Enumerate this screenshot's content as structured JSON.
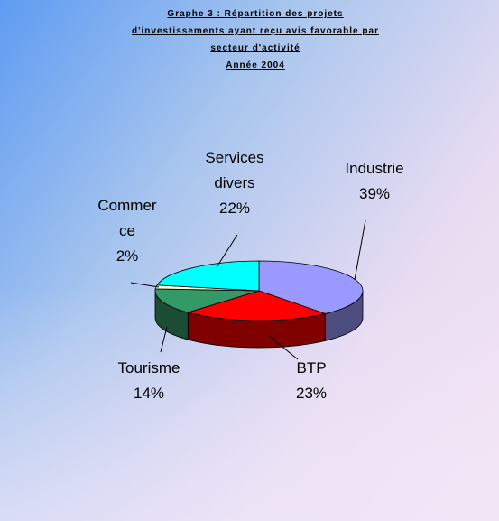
{
  "chart_data": {
    "type": "pie",
    "title": [
      "Graphe 3 : Répartition des projets",
      "d'investissements ayant reçu avis favorable par",
      "secteur d'activité"
    ],
    "subtitle": "Année 2004",
    "categories": [
      "Industrie",
      "BTP",
      "Tourisme",
      "Commerce",
      "Services divers"
    ],
    "values": [
      39,
      23,
      14,
      2,
      22
    ],
    "value_labels": [
      "39%",
      "23%",
      "14%",
      "2%",
      "22%"
    ],
    "colors": [
      "#9999ff",
      "#ff0000",
      "#339966",
      "#ffffcc",
      "#00ffff"
    ],
    "three_d": true
  }
}
